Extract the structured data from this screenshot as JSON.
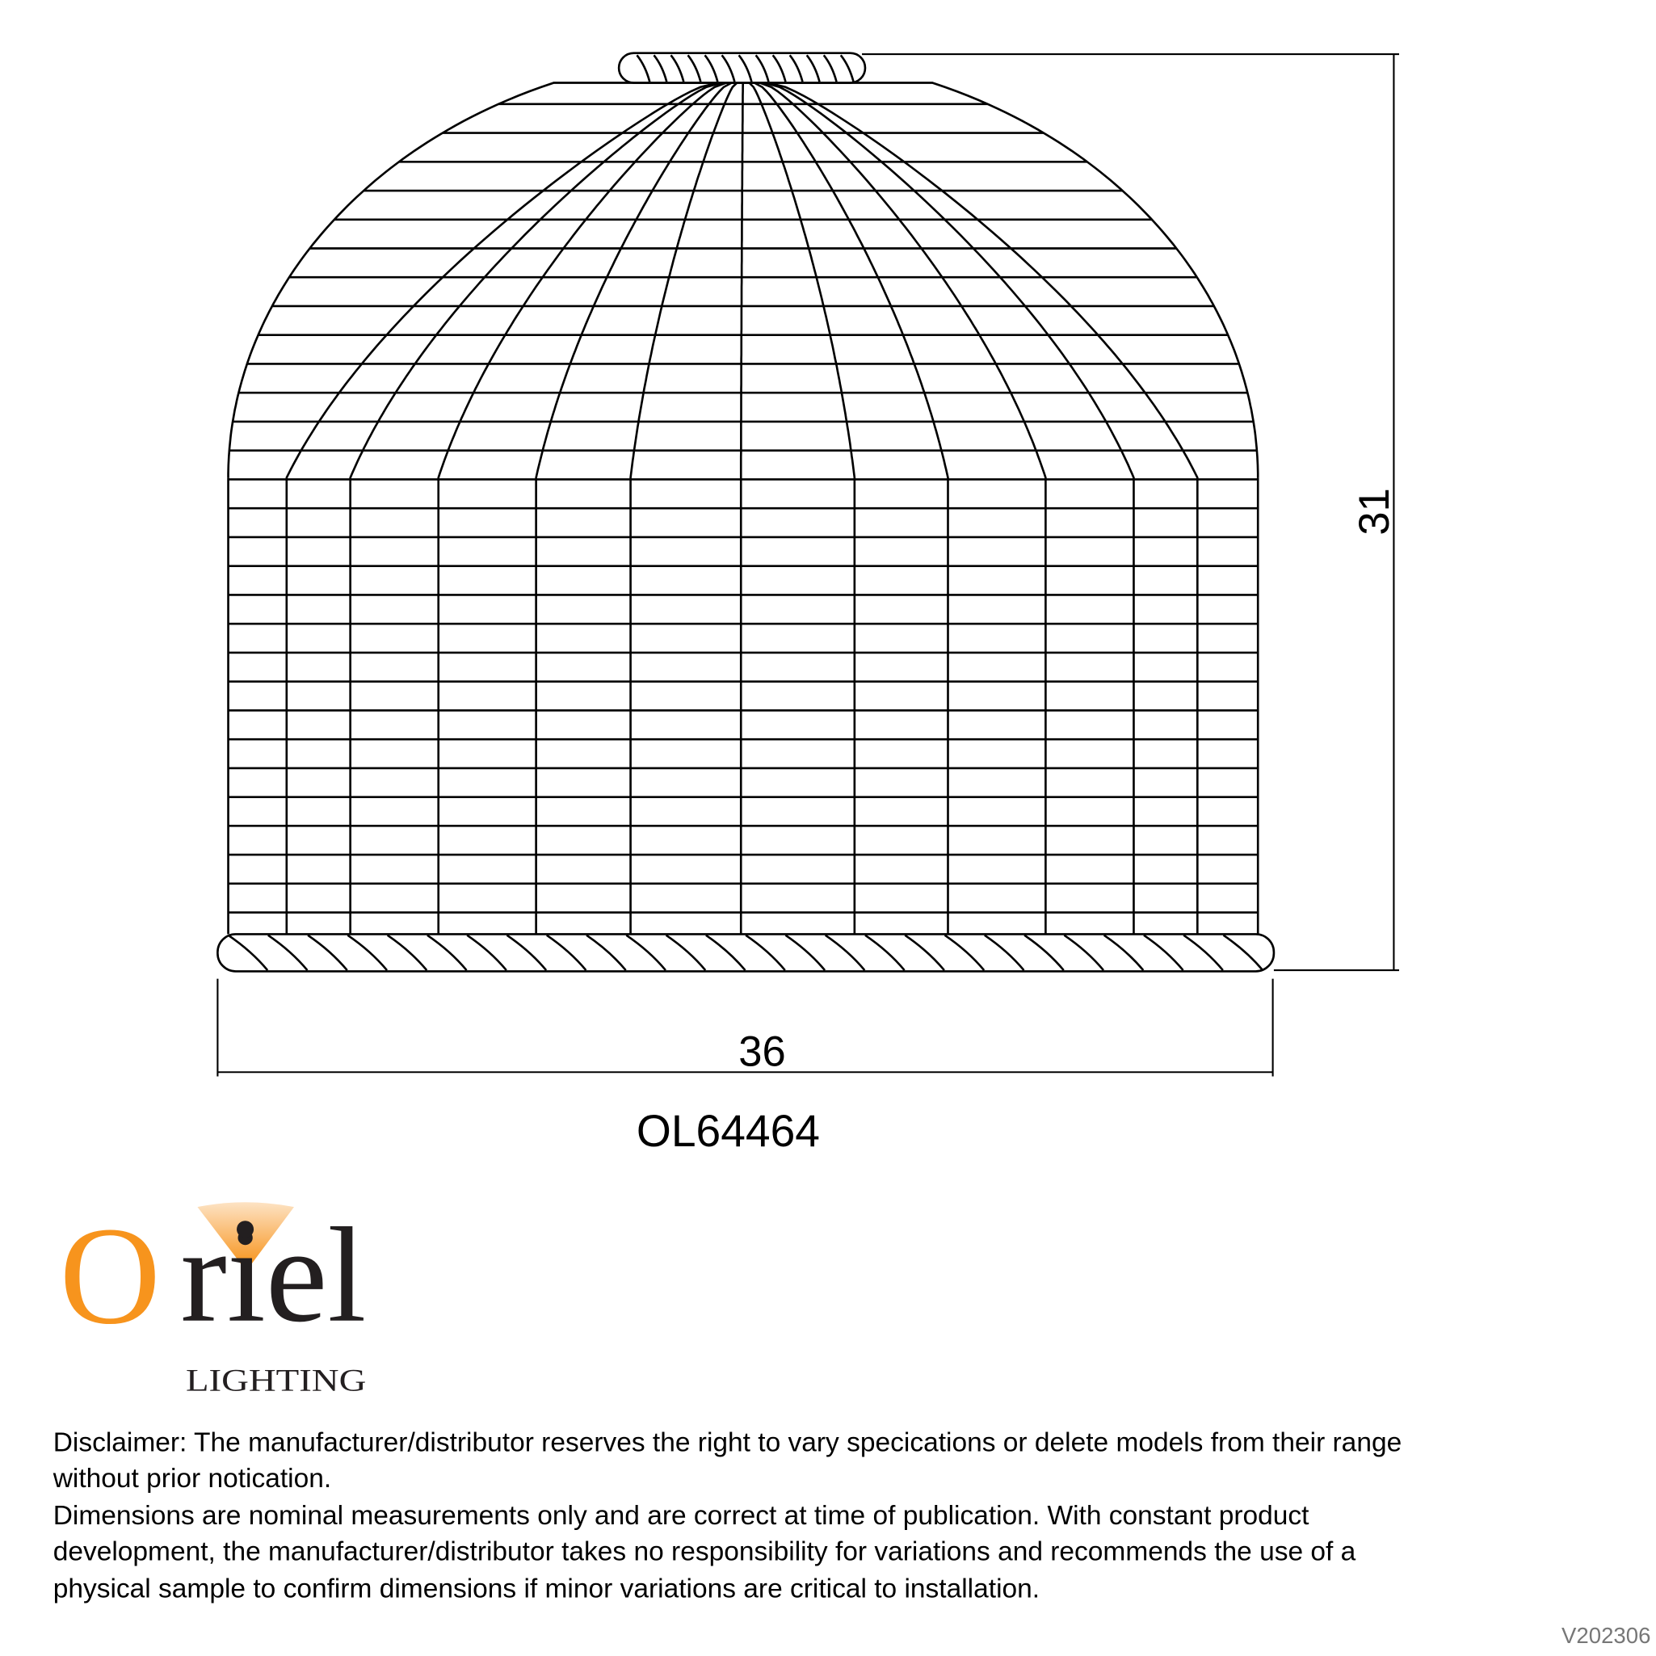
{
  "drawing": {
    "height_dimension": "31",
    "width_dimension": "36",
    "model_code": "OL64464"
  },
  "logo": {
    "brand_letter_o": "O",
    "brand_rest": "riel",
    "subtitle": "LIGHTING",
    "accent_color": "#F7941D"
  },
  "disclaimer": {
    "lines": [
      "Disclaimer: The manufacturer/distributor reserves the right to vary specications or delete models from their range",
      "without prior notication.",
      "Dimensions are nominal measurements only and are correct at time of publication. With constant product",
      "development, the manufacturer/distributor takes no responsibility for variations and recommends the use of a",
      "physical sample to confirm dimensions if minor variations are critical to installation."
    ]
  },
  "version": "V202306"
}
